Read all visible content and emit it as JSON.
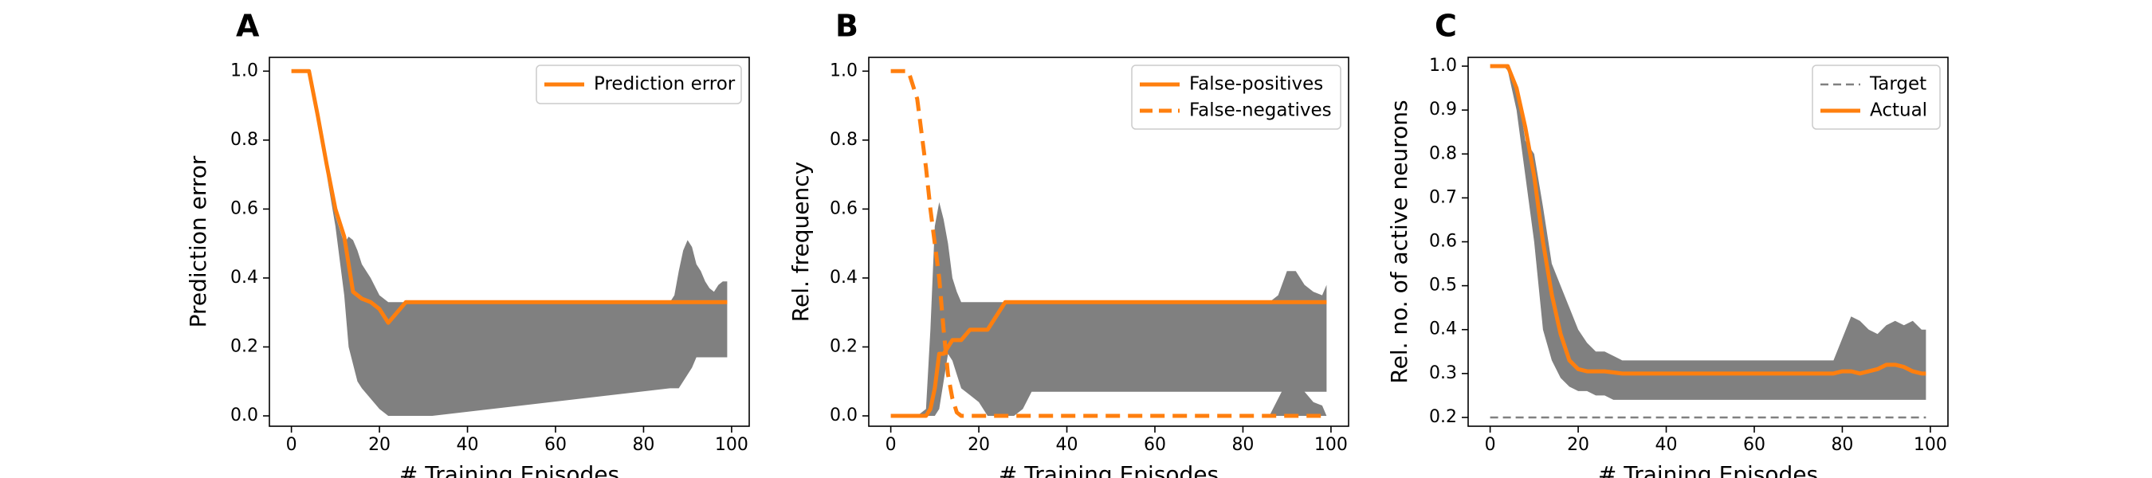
{
  "colors": {
    "actual": "#ff7f0e",
    "band": "#808080",
    "target": "#808080"
  },
  "chart_data": [
    {
      "type": "line",
      "panel": "A",
      "xlabel": "# Training Episodes",
      "ylabel": "Prediction error",
      "xlim": [
        -5,
        104
      ],
      "ylim": [
        -0.03,
        1.04
      ],
      "xticks": [
        0,
        20,
        40,
        60,
        80,
        100
      ],
      "yticks": [
        0.0,
        0.2,
        0.4,
        0.6,
        0.8,
        1.0
      ],
      "ytick_decimals": 1,
      "legend_position": "top-right",
      "bands": [
        {
          "x": [
            0,
            4,
            6,
            8,
            10,
            12,
            13,
            14,
            15,
            16,
            18,
            20,
            22,
            24,
            26,
            28,
            30,
            32,
            86,
            87,
            88,
            89,
            90,
            91,
            92,
            93,
            94,
            95,
            96,
            97,
            98,
            99
          ],
          "upper": [
            1.0,
            1.0,
            0.85,
            0.7,
            0.58,
            0.5,
            0.52,
            0.51,
            0.48,
            0.44,
            0.4,
            0.35,
            0.33,
            0.33,
            0.33,
            0.33,
            0.33,
            0.33,
            0.33,
            0.35,
            0.42,
            0.48,
            0.51,
            0.49,
            0.44,
            0.42,
            0.39,
            0.37,
            0.36,
            0.38,
            0.39,
            0.39
          ],
          "lower": [
            1.0,
            1.0,
            0.85,
            0.7,
            0.55,
            0.35,
            0.2,
            0.15,
            0.1,
            0.08,
            0.05,
            0.02,
            0.0,
            0.0,
            0.0,
            0.0,
            0.0,
            0.0,
            0.08,
            0.08,
            0.08,
            0.1,
            0.12,
            0.14,
            0.17,
            0.17,
            0.17,
            0.17,
            0.17,
            0.17,
            0.17,
            0.17
          ]
        }
      ],
      "series": [
        {
          "name": "Prediction error",
          "style": "solid",
          "x": [
            0,
            4,
            6,
            8,
            10,
            12,
            14,
            16,
            18,
            20,
            22,
            24,
            26,
            28,
            40,
            60,
            80,
            99
          ],
          "y": [
            1.0,
            1.0,
            0.87,
            0.73,
            0.6,
            0.52,
            0.36,
            0.34,
            0.33,
            0.31,
            0.27,
            0.3,
            0.33,
            0.33,
            0.33,
            0.33,
            0.33,
            0.33
          ]
        }
      ]
    },
    {
      "type": "line",
      "panel": "B",
      "xlabel": "# Training Episodes",
      "ylabel": "Rel. frequency",
      "xlim": [
        -5,
        104
      ],
      "ylim": [
        -0.03,
        1.04
      ],
      "xticks": [
        0,
        20,
        40,
        60,
        80,
        100
      ],
      "yticks": [
        0.0,
        0.2,
        0.4,
        0.6,
        0.8,
        1.0
      ],
      "ytick_decimals": 1,
      "legend_position": "top-right",
      "bands": [
        {
          "x": [
            0,
            6,
            8,
            9,
            10,
            11,
            12,
            13,
            14,
            15,
            16,
            18,
            20,
            22,
            28,
            30,
            32,
            86,
            88,
            90,
            92,
            94,
            96,
            98,
            99
          ],
          "upper": [
            0.0,
            0.0,
            0.02,
            0.25,
            0.55,
            0.62,
            0.57,
            0.5,
            0.4,
            0.36,
            0.33,
            0.33,
            0.33,
            0.33,
            0.33,
            0.33,
            0.33,
            0.33,
            0.35,
            0.42,
            0.42,
            0.38,
            0.36,
            0.35,
            0.38
          ],
          "lower": [
            0.0,
            0.0,
            0.0,
            0.0,
            0.0,
            0.02,
            0.1,
            0.18,
            0.16,
            0.12,
            0.08,
            0.06,
            0.04,
            0.0,
            0.0,
            0.02,
            0.07,
            0.07,
            0.07,
            0.07,
            0.07,
            0.07,
            0.07,
            0.07,
            0.07
          ]
        },
        {
          "x": [
            86,
            88,
            90,
            91,
            92,
            94,
            96,
            98,
            99
          ],
          "upper": [
            0.0,
            0.05,
            0.1,
            0.12,
            0.1,
            0.07,
            0.04,
            0.03,
            0.0
          ],
          "lower": [
            0.0,
            0.0,
            0.0,
            0.0,
            0.0,
            0.0,
            0.0,
            0.0,
            0.0
          ]
        }
      ],
      "series": [
        {
          "name": "False-positives",
          "style": "solid",
          "x": [
            0,
            8,
            9,
            10,
            11,
            12,
            13,
            14,
            16,
            18,
            20,
            22,
            24,
            26,
            40,
            60,
            80,
            99
          ],
          "y": [
            0.0,
            0.0,
            0.02,
            0.08,
            0.18,
            0.18,
            0.2,
            0.22,
            0.22,
            0.25,
            0.25,
            0.25,
            0.29,
            0.33,
            0.33,
            0.33,
            0.33,
            0.33
          ]
        },
        {
          "name": "False-negatives",
          "style": "dashed",
          "x": [
            0,
            4,
            6,
            8,
            9,
            10,
            11,
            12,
            13,
            14,
            15,
            16,
            20,
            40,
            60,
            80,
            99
          ],
          "y": [
            1.0,
            1.0,
            0.92,
            0.72,
            0.6,
            0.5,
            0.4,
            0.25,
            0.12,
            0.05,
            0.01,
            0.0,
            0.0,
            0.0,
            0.0,
            0.0,
            0.0
          ]
        }
      ]
    },
    {
      "type": "line",
      "panel": "C",
      "xlabel": "# Training Episodes",
      "ylabel": "Rel. no. of active neurons",
      "xlim": [
        -5,
        104
      ],
      "ylim": [
        0.18,
        1.02
      ],
      "xticks": [
        0,
        20,
        40,
        60,
        80,
        100
      ],
      "yticks": [
        0.2,
        0.3,
        0.4,
        0.5,
        0.6,
        0.7,
        0.8,
        0.9,
        1.0
      ],
      "ytick_decimals": 1,
      "legend_position": "top-right",
      "bands": [
        {
          "x": [
            0,
            3,
            4,
            6,
            8,
            10,
            12,
            14,
            16,
            18,
            20,
            22,
            24,
            26,
            28,
            30,
            32,
            78,
            80,
            82,
            84,
            86,
            88,
            90,
            92,
            94,
            96,
            98,
            99
          ],
          "upper": [
            1.0,
            1.0,
            1.0,
            0.96,
            0.83,
            0.8,
            0.68,
            0.55,
            0.5,
            0.45,
            0.4,
            0.37,
            0.35,
            0.35,
            0.34,
            0.33,
            0.33,
            0.33,
            0.38,
            0.43,
            0.42,
            0.4,
            0.39,
            0.41,
            0.42,
            0.41,
            0.42,
            0.4,
            0.4
          ],
          "lower": [
            1.0,
            1.0,
            0.99,
            0.9,
            0.75,
            0.6,
            0.4,
            0.33,
            0.29,
            0.27,
            0.26,
            0.26,
            0.25,
            0.25,
            0.24,
            0.24,
            0.24,
            0.24,
            0.24,
            0.24,
            0.24,
            0.24,
            0.24,
            0.24,
            0.24,
            0.24,
            0.24,
            0.24,
            0.24
          ]
        }
      ],
      "series": [
        {
          "name": "Target",
          "style": "dashed-thin",
          "x": [
            0,
            99
          ],
          "y": [
            0.2,
            0.2
          ]
        },
        {
          "name": "Actual",
          "style": "solid",
          "x": [
            0,
            4,
            6,
            8,
            10,
            12,
            14,
            16,
            18,
            20,
            22,
            26,
            30,
            40,
            60,
            78,
            80,
            82,
            84,
            86,
            88,
            90,
            92,
            94,
            96,
            98,
            99
          ],
          "y": [
            1.0,
            1.0,
            0.95,
            0.86,
            0.75,
            0.6,
            0.48,
            0.39,
            0.33,
            0.31,
            0.305,
            0.305,
            0.3,
            0.3,
            0.3,
            0.3,
            0.305,
            0.305,
            0.3,
            0.305,
            0.31,
            0.32,
            0.32,
            0.315,
            0.305,
            0.3,
            0.3
          ]
        }
      ]
    }
  ]
}
